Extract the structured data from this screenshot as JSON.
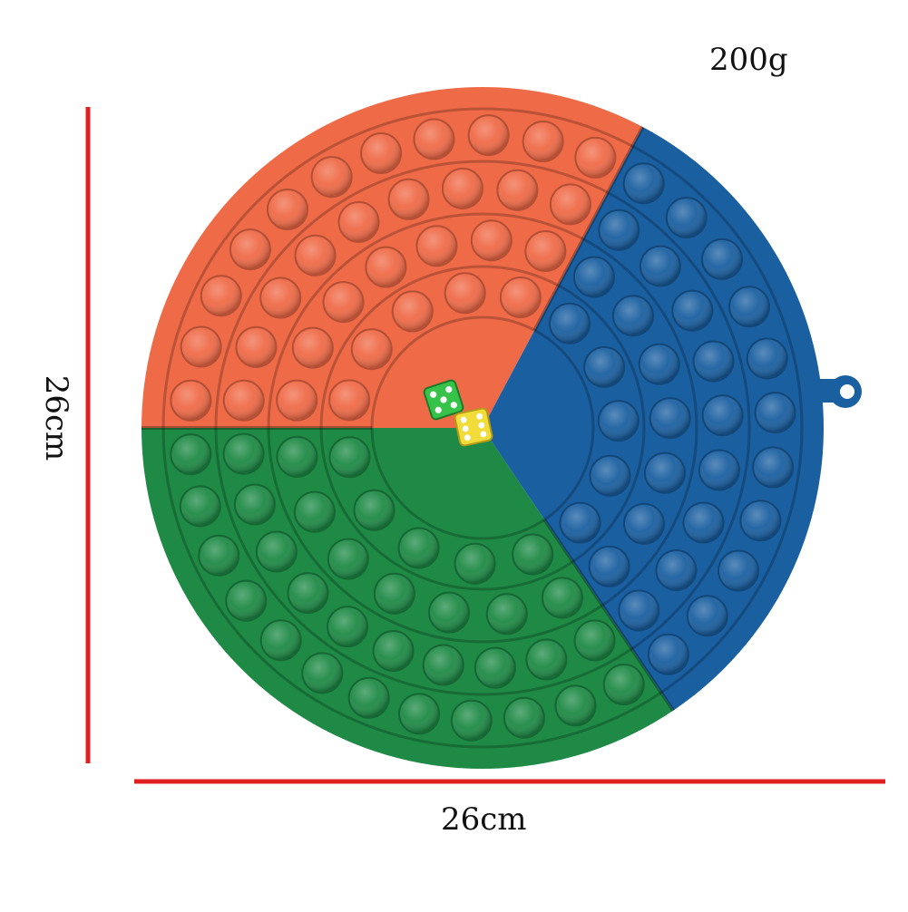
{
  "labels": {
    "weight": "200g",
    "width": "26cm",
    "height": "26cm"
  },
  "colors": {
    "dimension_line": "#e02020",
    "orange": "#ef6a47",
    "blue": "#1a5fa0",
    "green": "#1e8a45",
    "die_green": "#37c24a",
    "die_yellow": "#f2dc3a"
  }
}
